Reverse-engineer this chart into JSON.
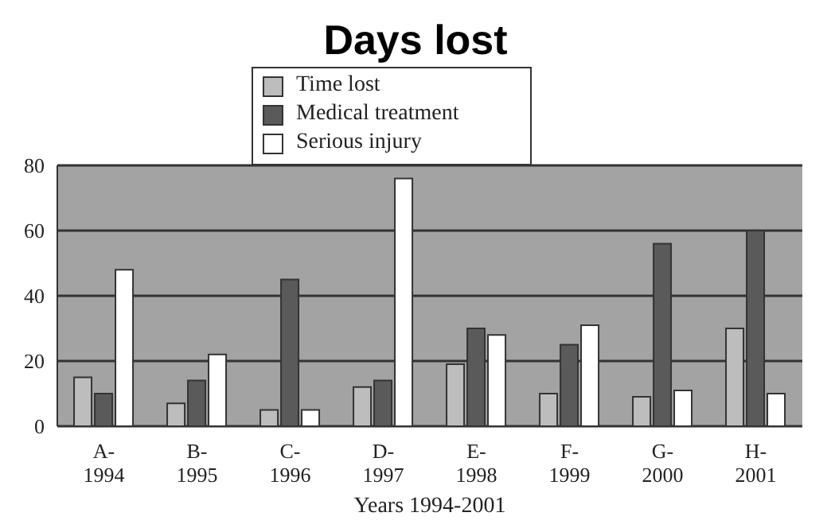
{
  "chart_data": {
    "type": "bar",
    "title": "Days lost",
    "xlabel": "Years 1994-2001",
    "categories": [
      "A- 1994",
      "B- 1995",
      "C- 1996",
      "D- 1997",
      "E- 1998",
      "F- 1999",
      "G- 2000",
      "H- 2001"
    ],
    "series": [
      {
        "name": "Time lost",
        "color": "#bdbdbd",
        "values": [
          15,
          7,
          5,
          12,
          19,
          10,
          9,
          30
        ]
      },
      {
        "name": "Medical treatment",
        "color": "#5a5a5a",
        "values": [
          10,
          14,
          45,
          14,
          30,
          25,
          56,
          60
        ]
      },
      {
        "name": "Serious injury",
        "color": "#ffffff",
        "values": [
          48,
          22,
          5,
          76,
          28,
          31,
          11,
          10
        ]
      }
    ],
    "ylim": [
      0,
      80
    ],
    "yticks": [
      0,
      20,
      40,
      60,
      80
    ],
    "grid": "y",
    "legend": "top"
  }
}
